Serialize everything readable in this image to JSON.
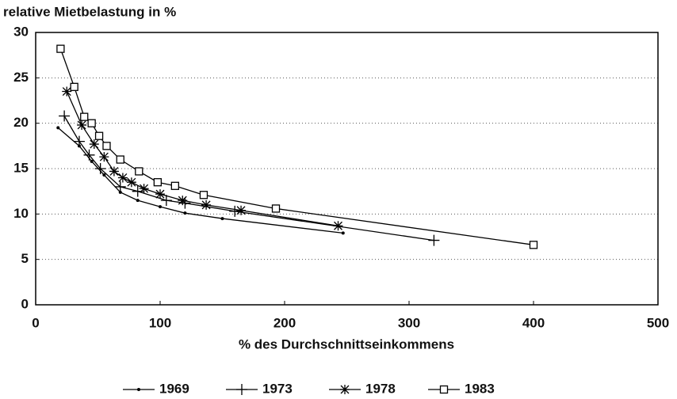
{
  "chart_data": {
    "type": "line",
    "title": "relative Mietbelastung in %",
    "x_label": "% des Durchschnittseinkommens",
    "xlim": [
      0,
      500
    ],
    "xticks": [
      0,
      100,
      200,
      300,
      400,
      500
    ],
    "ylim": [
      0,
      30
    ],
    "yticks": [
      0,
      5,
      10,
      15,
      20,
      25,
      30
    ],
    "grid": true,
    "legend": "bottom",
    "series": [
      {
        "name": "1969",
        "color": "#000000",
        "marker": "dot",
        "x": [
          18,
          35,
          45,
          55,
          68,
          82,
          100,
          120,
          150,
          247
        ],
        "values": [
          19.5,
          17.5,
          15.8,
          14.3,
          12.4,
          11.5,
          10.8,
          10.1,
          9.5,
          7.9
        ]
      },
      {
        "name": "1973",
        "color": "#000000",
        "marker": "plus",
        "x": [
          23,
          35,
          43,
          52,
          68,
          82,
          105,
          120,
          160,
          320
        ],
        "values": [
          20.8,
          18.0,
          16.5,
          15.0,
          13.0,
          12.5,
          11.5,
          11.2,
          10.3,
          7.1
        ]
      },
      {
        "name": "1978",
        "color": "#000000",
        "marker": "star",
        "x": [
          25,
          37,
          47,
          55,
          63,
          70,
          77,
          87,
          100,
          118,
          137,
          165,
          243
        ],
        "values": [
          23.5,
          19.8,
          17.7,
          16.3,
          14.7,
          14.0,
          13.5,
          12.8,
          12.2,
          11.5,
          11.0,
          10.4,
          8.7
        ]
      },
      {
        "name": "1983",
        "color": "#000000",
        "marker": "square",
        "x": [
          20,
          31,
          39,
          45,
          51,
          57,
          68,
          83,
          98,
          112,
          135,
          193,
          400
        ],
        "values": [
          28.2,
          24.0,
          20.7,
          20.0,
          18.6,
          17.5,
          16.0,
          14.7,
          13.5,
          13.1,
          12.1,
          10.6,
          6.6
        ]
      }
    ]
  }
}
